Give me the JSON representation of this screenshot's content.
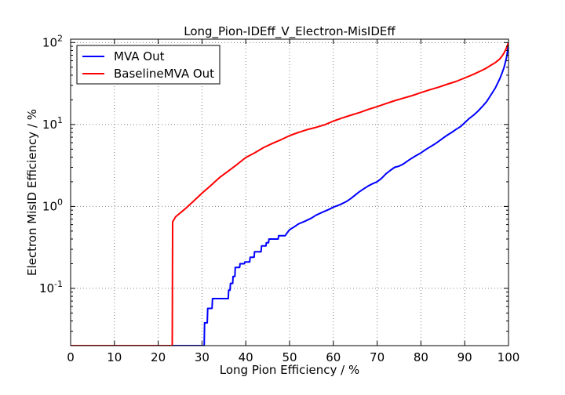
{
  "chart_data": {
    "type": "line",
    "title": "Long_Pion-IDEff_V_Electron-MisIDEff",
    "xlabel": "Long Pion Efficiency / %",
    "ylabel": "Electron MisID Efficiency / %",
    "xlim": [
      0,
      100
    ],
    "ylim": [
      0.02,
      110
    ],
    "yscale": "log",
    "grid": true,
    "legend_position": "top-left",
    "x_ticks": [
      "0",
      "10",
      "20",
      "30",
      "40",
      "50",
      "60",
      "70",
      "80",
      "90",
      "100"
    ],
    "y_ticks": [
      {
        "value": 0.1,
        "base": "10",
        "exp": "-1"
      },
      {
        "value": 1,
        "base": "10",
        "exp": "0"
      },
      {
        "value": 10,
        "base": "10",
        "exp": "1"
      },
      {
        "value": 100,
        "base": "10",
        "exp": "2"
      }
    ],
    "series": [
      {
        "name": "MVA Out",
        "color": "#0000ff",
        "x": [
          0,
          30.5,
          30.6,
          31.2,
          31.3,
          32.3,
          32.4,
          33.8,
          33.9,
          36.0,
          36.1,
          36.4,
          36.5,
          37.0,
          37.1,
          37.5,
          37.6,
          38.6,
          38.7,
          39.7,
          39.8,
          40.9,
          41.0,
          41.9,
          42.0,
          43.5,
          43.6,
          44.6,
          44.7,
          45.2,
          45.3,
          47.4,
          47.5,
          49.0,
          49.5,
          50,
          51,
          52,
          53.5,
          55,
          56,
          57.5,
          59,
          60,
          61.5,
          63,
          64,
          65,
          66,
          67,
          68,
          69,
          70,
          71,
          72,
          73,
          74,
          75,
          76,
          77,
          78,
          79,
          80,
          81,
          82,
          83,
          84,
          85,
          86,
          87,
          88,
          89,
          90,
          91,
          92,
          93,
          94,
          95,
          96,
          97,
          98,
          98.5,
          99,
          99.3,
          99.6,
          99.8,
          100
        ],
        "y": [
          0.02,
          0.02,
          0.038,
          0.038,
          0.057,
          0.057,
          0.075,
          0.075,
          0.075,
          0.075,
          0.095,
          0.095,
          0.115,
          0.115,
          0.14,
          0.14,
          0.18,
          0.18,
          0.2,
          0.2,
          0.21,
          0.21,
          0.24,
          0.24,
          0.28,
          0.28,
          0.33,
          0.33,
          0.36,
          0.36,
          0.4,
          0.4,
          0.44,
          0.44,
          0.48,
          0.52,
          0.56,
          0.61,
          0.66,
          0.72,
          0.78,
          0.85,
          0.92,
          0.98,
          1.05,
          1.15,
          1.25,
          1.38,
          1.52,
          1.65,
          1.78,
          1.9,
          2.0,
          2.2,
          2.5,
          2.75,
          3.0,
          3.1,
          3.3,
          3.6,
          3.9,
          4.2,
          4.5,
          4.9,
          5.3,
          5.7,
          6.2,
          6.8,
          7.4,
          8.0,
          8.7,
          9.4,
          10.5,
          11.8,
          13.0,
          14.5,
          16.5,
          19,
          23,
          28,
          36,
          42,
          50,
          58,
          68,
          80,
          95
        ]
      },
      {
        "name": "BaselineMVA Out",
        "color": "#ff0000",
        "x": [
          0,
          23.2,
          23.3,
          24,
          26,
          28,
          30,
          32,
          34,
          36,
          38,
          40,
          42,
          44,
          46,
          48,
          50,
          52,
          54,
          56,
          58,
          60,
          62,
          64,
          66,
          68,
          70,
          72,
          74,
          76,
          78,
          80,
          82,
          84,
          86,
          88,
          90,
          92,
          94,
          95,
          96,
          97,
          98,
          98.5,
          99,
          99.5,
          100
        ],
        "y": [
          0.02,
          0.02,
          0.65,
          0.75,
          0.92,
          1.15,
          1.45,
          1.8,
          2.25,
          2.7,
          3.25,
          3.95,
          4.5,
          5.2,
          5.85,
          6.5,
          7.3,
          8.0,
          8.65,
          9.2,
          9.9,
          11.0,
          12.0,
          13.0,
          14.0,
          15.3,
          16.5,
          18.0,
          19.5,
          21.0,
          22.5,
          24.5,
          26.5,
          28.5,
          31.0,
          33.5,
          37.0,
          41.0,
          46.0,
          49.0,
          53.0,
          57.0,
          63.0,
          68.0,
          75.0,
          85.0,
          100.0
        ]
      }
    ]
  }
}
